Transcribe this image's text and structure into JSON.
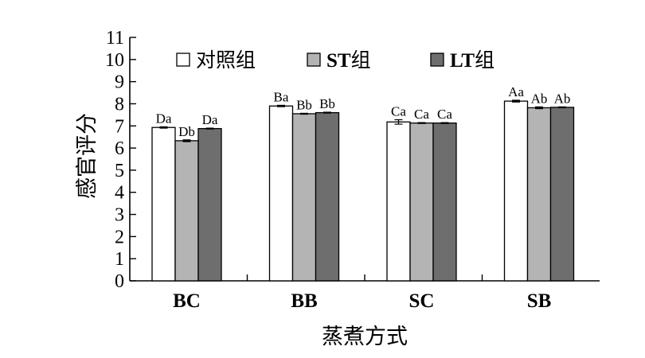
{
  "chart_data": {
    "type": "bar",
    "categories": [
      "BC",
      "BB",
      "SC",
      "SB"
    ],
    "series": [
      {
        "name": "对照组",
        "color": "#ffffff",
        "values": [
          6.93,
          7.9,
          7.18,
          8.12
        ],
        "errors": [
          0.03,
          0.03,
          0.1,
          0.04
        ],
        "labels": [
          "Da",
          "Ba",
          "Ca",
          "Aa"
        ]
      },
      {
        "name": "ST组",
        "color": "#b4b4b4",
        "values": [
          6.33,
          7.55,
          7.13,
          7.82
        ],
        "errors": [
          0.04,
          0.02,
          0.02,
          0.04
        ],
        "labels": [
          "Db",
          "Bb",
          "Ca",
          "Ab"
        ]
      },
      {
        "name": "LT组",
        "color": "#6e6e6e",
        "values": [
          6.88,
          7.6,
          7.13,
          7.84
        ],
        "errors": [
          0.02,
          0.02,
          0.02,
          0.02
        ],
        "labels": [
          "Da",
          "Bb",
          "Ca",
          "Ab"
        ]
      }
    ],
    "xlabel": "蒸煮方式",
    "ylabel": "感官评分",
    "ylim": [
      0,
      11
    ],
    "yticks": [
      0,
      1,
      2,
      3,
      4,
      5,
      6,
      7,
      8,
      9,
      10,
      11
    ],
    "grid": false,
    "legend_position": "top"
  }
}
